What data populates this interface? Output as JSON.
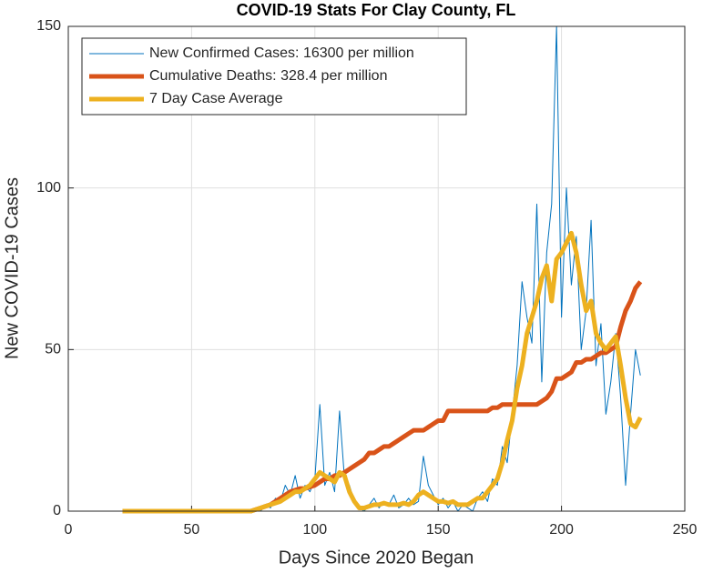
{
  "chart_data": {
    "type": "line",
    "title": "COVID-19 Stats For Clay County, FL",
    "x_label": "Days Since 2020 Began",
    "y_label": "New COVID-19 Cases",
    "x": [
      22,
      24,
      26,
      28,
      30,
      32,
      34,
      36,
      38,
      40,
      42,
      44,
      46,
      48,
      50,
      52,
      54,
      56,
      58,
      60,
      62,
      64,
      66,
      68,
      70,
      72,
      74,
      76,
      78,
      80,
      82,
      84,
      86,
      88,
      90,
      92,
      94,
      96,
      98,
      100,
      102,
      104,
      106,
      108,
      110,
      112,
      114,
      116,
      118,
      120,
      122,
      124,
      126,
      128,
      130,
      132,
      134,
      136,
      138,
      140,
      142,
      144,
      146,
      148,
      150,
      152,
      154,
      156,
      158,
      160,
      162,
      164,
      166,
      168,
      170,
      172,
      174,
      176,
      178,
      180,
      182,
      184,
      186,
      188,
      190,
      192,
      194,
      196,
      198,
      200,
      202,
      204,
      206,
      208,
      210,
      212,
      214,
      216,
      218,
      220,
      222,
      224,
      226,
      228,
      230,
      232
    ],
    "series": [
      {
        "name": "New Confirmed Cases: 16300 per million",
        "color": "#0072bd",
        "width": 1,
        "values": [
          0,
          0,
          0,
          0,
          0,
          0,
          0,
          0,
          0,
          0,
          0,
          0,
          0,
          0,
          0,
          0,
          0,
          0,
          0,
          0,
          0,
          0,
          0,
          0,
          0,
          0,
          0,
          1,
          0,
          2,
          1,
          4,
          3,
          8,
          5,
          11,
          4,
          8,
          6,
          10,
          33,
          8,
          12,
          6,
          31,
          10,
          8,
          3,
          1,
          0,
          2,
          4,
          1,
          3,
          2,
          5,
          1,
          2,
          4,
          2,
          3,
          17,
          8,
          5,
          2,
          4,
          1,
          3,
          0,
          2,
          1,
          0,
          4,
          6,
          3,
          10,
          8,
          20,
          15,
          30,
          45,
          71,
          60,
          52,
          95,
          40,
          80,
          95,
          150,
          60,
          100,
          70,
          85,
          50,
          62,
          90,
          45,
          58,
          30,
          40,
          55,
          35,
          8,
          30,
          50,
          42
        ]
      },
      {
        "name": "Cumulative Deaths: 328.4 per million",
        "color": "#d95319",
        "width": 5,
        "values": [
          0,
          0,
          0,
          0,
          0,
          0,
          0,
          0,
          0,
          0,
          0,
          0,
          0,
          0,
          0,
          0,
          0,
          0,
          0,
          0,
          0,
          0,
          0,
          0,
          0,
          0,
          0,
          0.5,
          1,
          1.5,
          2,
          3,
          4,
          5,
          6,
          6.5,
          7,
          7,
          7.5,
          8,
          9,
          10,
          10,
          11,
          11,
          12,
          13,
          14,
          15,
          16,
          18,
          18,
          19,
          20,
          20,
          21,
          22,
          23,
          24,
          25,
          25,
          25,
          26,
          27,
          28,
          28,
          31,
          31,
          31,
          31,
          31,
          31,
          31,
          31,
          31,
          32,
          32,
          33,
          33,
          33,
          33,
          33,
          33,
          33,
          33,
          34,
          35,
          37,
          41,
          41,
          42,
          43,
          46,
          46,
          47,
          47,
          48,
          49,
          49,
          50,
          51,
          57,
          62,
          65,
          69,
          71
        ]
      },
      {
        "name": "7 Day Case Average",
        "color": "#edb120",
        "width": 5,
        "values": [
          0,
          0,
          0,
          0,
          0,
          0,
          0,
          0,
          0,
          0,
          0,
          0,
          0,
          0,
          0,
          0,
          0,
          0,
          0,
          0,
          0,
          0,
          0,
          0,
          0,
          0,
          0,
          0.5,
          1,
          1.5,
          2,
          2.5,
          3,
          4,
          5,
          6,
          6,
          7,
          8,
          10,
          12,
          11,
          10,
          9,
          12,
          11,
          6,
          3,
          1,
          1,
          1.5,
          2,
          2,
          2.5,
          2,
          2,
          2,
          2.5,
          2,
          3,
          5,
          6,
          5,
          4,
          3,
          3,
          2.5,
          3,
          2,
          2,
          2,
          3,
          4,
          4,
          6,
          8,
          10,
          15,
          22,
          28,
          38,
          45,
          55,
          60,
          65,
          72,
          76,
          65,
          78,
          80,
          83,
          86,
          80,
          70,
          62,
          65,
          55,
          52,
          50,
          52,
          54,
          45,
          35,
          27,
          26,
          29
        ]
      }
    ],
    "xlim": [
      0,
      250
    ],
    "xticks": [
      0,
      50,
      100,
      150,
      200,
      250
    ],
    "ylim": [
      0,
      150
    ],
    "yticks": [
      0,
      50,
      100,
      150
    ],
    "grid": true,
    "legend": "northwest"
  }
}
